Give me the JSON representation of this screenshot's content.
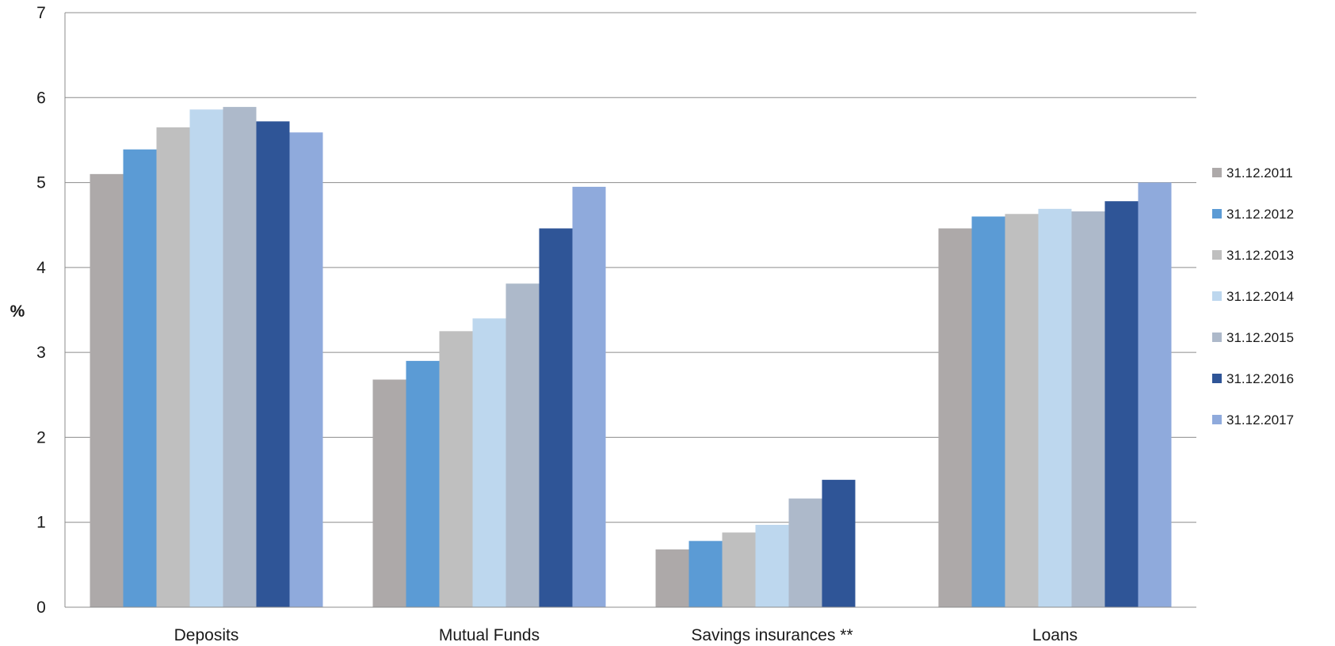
{
  "chart_data": {
    "type": "bar",
    "categories": [
      "Deposits",
      "Mutual Funds",
      "Savings insurances **",
      "Loans"
    ],
    "series": [
      {
        "name": "31.12.2011",
        "color": "#ADA9A9",
        "values": [
          5.1,
          2.68,
          0.68,
          4.46
        ]
      },
      {
        "name": "31.12.2012",
        "color": "#5B9BD5",
        "values": [
          5.39,
          2.9,
          0.78,
          4.6
        ]
      },
      {
        "name": "31.12.2013",
        "color": "#BFBFBF",
        "values": [
          5.65,
          3.25,
          0.88,
          4.63
        ]
      },
      {
        "name": "31.12.2014",
        "color": "#BDD7EE",
        "values": [
          5.86,
          3.4,
          0.97,
          4.69
        ]
      },
      {
        "name": "31.12.2015",
        "color": "#ADB9CA",
        "values": [
          5.89,
          3.81,
          1.28,
          4.66
        ]
      },
      {
        "name": "31.12.2016",
        "color": "#2F5597",
        "values": [
          5.72,
          4.46,
          1.5,
          4.78
        ]
      },
      {
        "name": "31.12.2017",
        "color": "#8FAADC",
        "values": [
          5.59,
          4.95,
          null,
          5.0
        ]
      }
    ],
    "title": "",
    "xlabel": "",
    "ylabel": "%",
    "ylim": [
      0,
      7
    ],
    "yticks": [
      "0",
      "1",
      "2",
      "3",
      "4",
      "5",
      "6",
      "7"
    ],
    "grid": true,
    "legend_position": "right"
  }
}
